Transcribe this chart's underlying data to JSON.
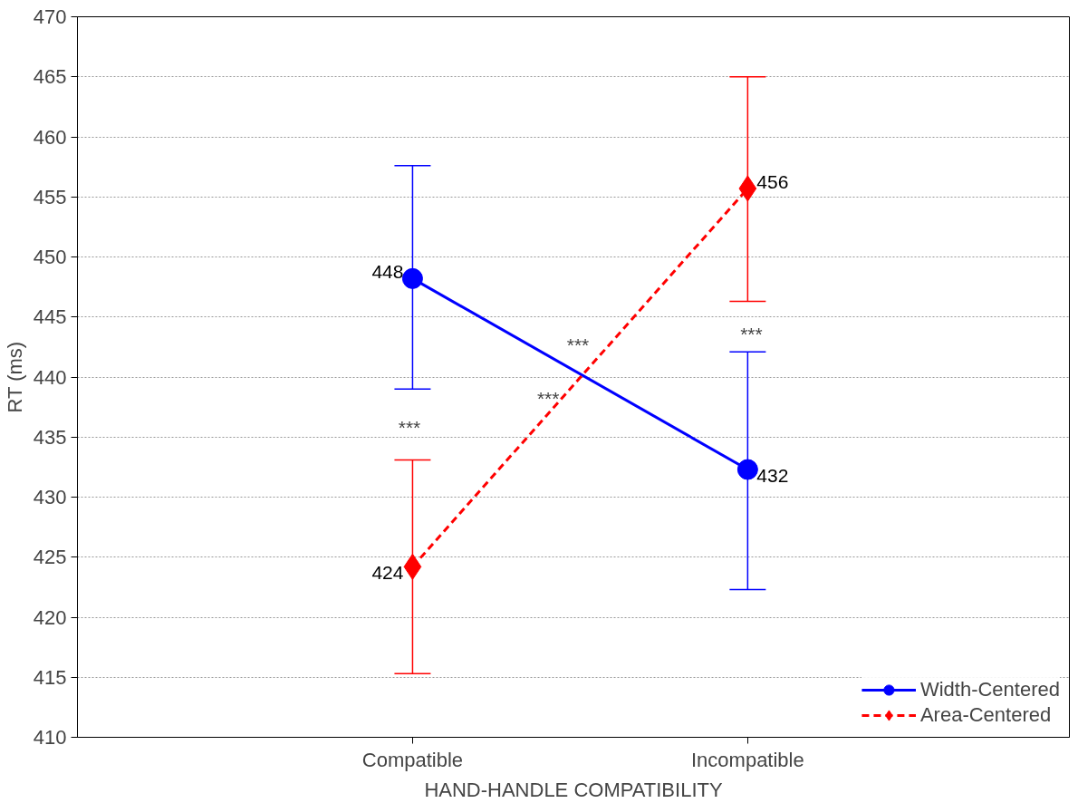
{
  "chart_data": {
    "type": "line",
    "xlabel": "HAND-HANDLE COMPATIBILITY",
    "ylabel": "RT (ms)",
    "categories": [
      "Compatible",
      "Incompatible"
    ],
    "series": [
      {
        "name": "Width-Centered",
        "color": "#0000ff",
        "values": [
          448.2,
          432.3
        ],
        "errors": [
          [
            439.0,
            457.6
          ],
          [
            422.3,
            442.1
          ]
        ],
        "value_labels": [
          "448",
          "432"
        ],
        "marker": "circle",
        "line_style": "solid"
      },
      {
        "name": "Area-Centered",
        "color": "#ff0000",
        "values": [
          424.2,
          455.7
        ],
        "errors": [
          [
            415.3,
            433.1
          ],
          [
            446.3,
            465.0
          ]
        ],
        "value_labels": [
          "424",
          "456"
        ],
        "marker": "diamond",
        "line_style": "dashed"
      }
    ],
    "annotations": [
      "***",
      "***",
      "***",
      "***"
    ],
    "ylim": [
      410,
      470
    ],
    "yticks": [
      410,
      415,
      420,
      425,
      430,
      435,
      440,
      445,
      450,
      455,
      460,
      465,
      470
    ],
    "grid": "y",
    "legend": "bottom right"
  }
}
